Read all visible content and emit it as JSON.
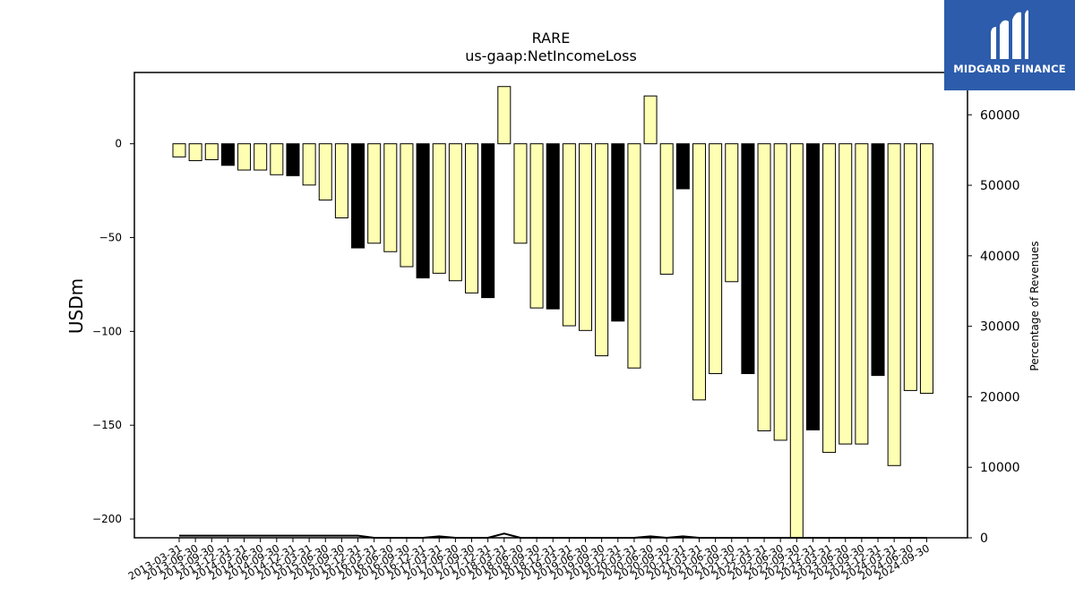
{
  "chart_data": {
    "type": "bar",
    "title": "RARE",
    "subtitle": "us-gaap:NetIncomeLoss",
    "ylabel": "USDm",
    "y2label": "Percentage of Revenues",
    "ylim": [
      -210,
      38
    ],
    "y2lim": [
      0,
      66000
    ],
    "yticks": [
      0,
      -50,
      -100,
      -150,
      -200
    ],
    "y2ticks": [
      0,
      10000,
      20000,
      30000,
      40000,
      50000,
      60000
    ],
    "colors": {
      "quarter": "#ffffb3",
      "annual": "#000000",
      "edge": "#000000"
    },
    "categories": [
      "2013-03-31",
      "2013-06-30",
      "2013-09-30",
      "2013-12-31",
      "2014-03-31",
      "2014-06-30",
      "2014-09-30",
      "2014-12-31",
      "2015-03-31",
      "2015-06-30",
      "2015-09-30",
      "2015-12-31",
      "2016-03-31",
      "2016-06-30",
      "2016-09-30",
      "2016-12-31",
      "2017-03-31",
      "2017-06-30",
      "2017-09-30",
      "2017-12-31",
      "2018-03-31",
      "2018-06-30",
      "2018-09-30",
      "2018-12-31",
      "2019-03-31",
      "2019-06-30",
      "2019-09-30",
      "2019-12-31",
      "2020-03-31",
      "2020-06-30",
      "2020-09-30",
      "2020-12-31",
      "2021-03-31",
      "2021-06-30",
      "2021-09-30",
      "2021-12-31",
      "2022-03-31",
      "2022-06-30",
      "2022-09-30",
      "2022-12-31",
      "2023-03-31",
      "2023-06-30",
      "2023-09-30",
      "2023-12-31",
      "2024-03-31",
      "2024-06-30",
      "2024-09-30"
    ],
    "series": [
      {
        "values": [
          -7,
          -9,
          -8.5,
          -11.5,
          -14,
          -14,
          -16.5,
          -17,
          -22,
          -30,
          -39.5,
          -55.5,
          -53,
          -57.5,
          -65.5,
          -71.5,
          -69,
          -73,
          -79.5,
          -82,
          30.5,
          -53,
          -87.5,
          -88,
          -97,
          -99.5,
          -113,
          -94.5,
          -119.5,
          25.5,
          -69.5,
          -24,
          -136.5,
          -122.5,
          -73.5,
          -122.5,
          -153,
          -158,
          -215,
          -152.5,
          -164.5,
          -160,
          -160,
          -123.5,
          -171.5,
          -131.5,
          -133
        ]
      },
      {
        "values": [
          300,
          300,
          300,
          300,
          300,
          300,
          300,
          300,
          300,
          300,
          300,
          300,
          0,
          0,
          0,
          0,
          200,
          0,
          0,
          0,
          600,
          0,
          0,
          0,
          0,
          0,
          0,
          0,
          0,
          200,
          0,
          200,
          0,
          0,
          0,
          0,
          0,
          0,
          0,
          0,
          0,
          0,
          0,
          0,
          0,
          0,
          0
        ]
      }
    ],
    "annual_flags": [
      false,
      false,
      false,
      true,
      false,
      false,
      false,
      true,
      false,
      false,
      false,
      true,
      false,
      false,
      false,
      true,
      false,
      false,
      false,
      true,
      false,
      false,
      false,
      true,
      false,
      false,
      false,
      true,
      false,
      false,
      false,
      true,
      false,
      false,
      false,
      true,
      false,
      false,
      false,
      true,
      false,
      false,
      false,
      true,
      false,
      false,
      false
    ]
  },
  "logo": {
    "name": "MIDGARD FINANCE"
  }
}
